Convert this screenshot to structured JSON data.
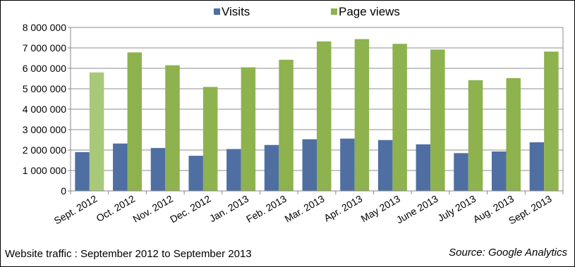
{
  "caption": "Website traffic : September 2012 to September 2013",
  "source": "Source: Google Analytics",
  "chart_data": {
    "type": "bar",
    "title": "",
    "xlabel": "",
    "ylabel": "",
    "ylim": [
      0,
      8000000
    ],
    "y_ticks": [
      0,
      1000000,
      2000000,
      3000000,
      4000000,
      5000000,
      6000000,
      7000000,
      8000000
    ],
    "y_tick_labels": [
      "0",
      "1 000 000",
      "2 000 000",
      "3 000 000",
      "4 000 000",
      "5 000 000",
      "6 000 000",
      "7 000 000",
      "8 000 000"
    ],
    "grid": true,
    "legend_position": "top",
    "categories": [
      "Sept. 2012",
      "Oct. 2012",
      "Nov. 2012",
      "Dec. 2012",
      "Jan. 2013",
      "Feb. 2013",
      "Mar. 2013",
      "Apr. 2013",
      "May 2013",
      "June 2013",
      "July 2013",
      "Aug. 2013",
      "Sept. 2013"
    ],
    "series": [
      {
        "name": "Visits",
        "color": "#4f6fa3",
        "values": [
          1900000,
          2320000,
          2100000,
          1720000,
          2050000,
          2250000,
          2530000,
          2560000,
          2490000,
          2280000,
          1850000,
          1930000,
          2380000
        ]
      },
      {
        "name": "Page views",
        "color": "#8db24e",
        "values": [
          5800000,
          6780000,
          6150000,
          5090000,
          6050000,
          6420000,
          7320000,
          7430000,
          7200000,
          6920000,
          5420000,
          5520000,
          6820000
        ]
      }
    ],
    "highlight": {
      "series": 1,
      "index": 0,
      "color": "#a9c97a"
    }
  }
}
